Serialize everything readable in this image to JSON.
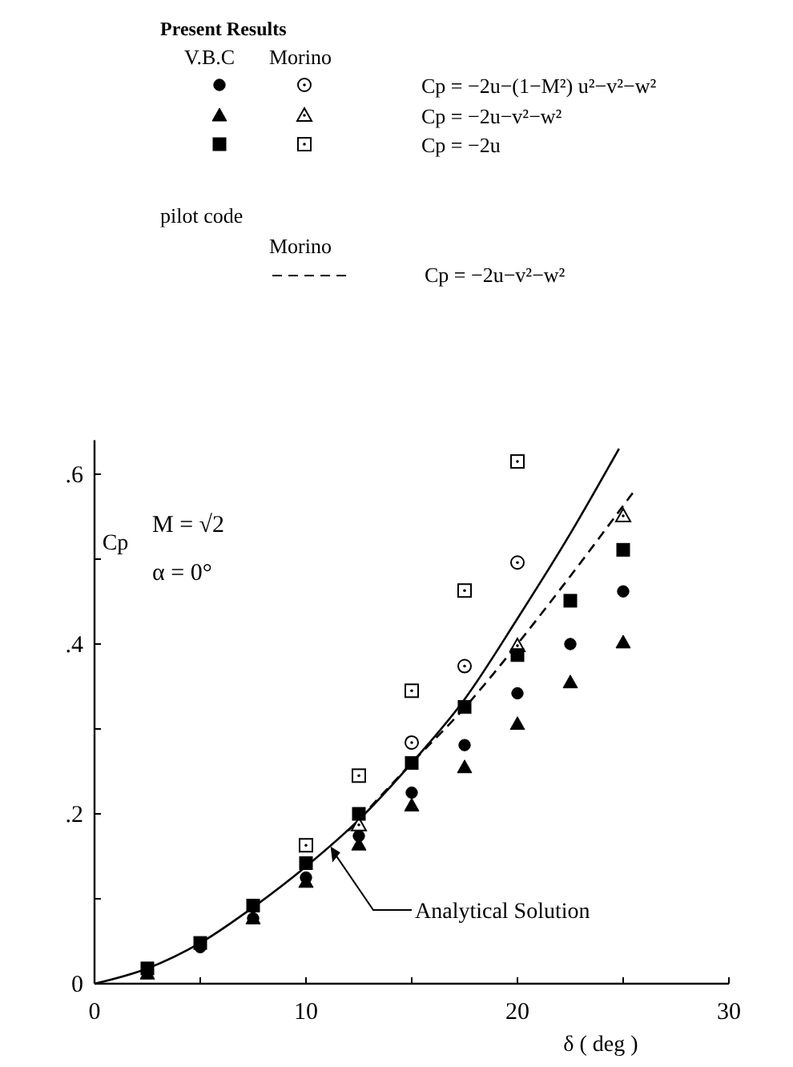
{
  "chart_data": {
    "type": "scatter",
    "xlabel": "δ ( deg )",
    "ylabel": "Cp",
    "xlim": [
      0,
      30
    ],
    "ylim": [
      0,
      0.64
    ],
    "xticks": [
      0,
      {
        "value": 5,
        "label": null
      },
      10,
      {
        "value": 15,
        "label": null
      },
      20,
      {
        "value": 25,
        "label": null
      },
      30
    ],
    "yticks": [
      0,
      {
        "value": 0.1,
        "label": null
      },
      {
        "value": 0.2,
        "label": ".2"
      },
      {
        "value": 0.3,
        "label": null
      },
      {
        "value": 0.4,
        "label": ".4"
      },
      {
        "value": 0.5,
        "label": null
      },
      {
        "value": 0.6,
        "label": ".6"
      }
    ],
    "grid": false,
    "series": [
      {
        "marker": "circle",
        "color": "#000000",
        "x": [
          5,
          7.5,
          10,
          12.5,
          15,
          17.5,
          20,
          22.5,
          25
        ],
        "values": [
          0.043,
          0.077,
          0.125,
          0.174,
          0.225,
          0.281,
          0.342,
          0.4,
          0.462
        ]
      },
      {
        "marker": "triangle",
        "color": "#000000",
        "x": [
          2.5,
          7.5,
          10,
          12.5,
          15,
          17.5,
          20,
          22.5,
          25
        ],
        "values": [
          0.012,
          0.077,
          0.12,
          0.164,
          0.21,
          0.255,
          0.306,
          0.355,
          0.402
        ]
      },
      {
        "marker": "square",
        "color": "#000000",
        "x": [
          2.5,
          5,
          7.5,
          10,
          12.5,
          15,
          17.5,
          20,
          22.5,
          25
        ],
        "values": [
          0.018,
          0.048,
          0.092,
          0.142,
          0.2,
          0.26,
          0.326,
          0.387,
          0.451,
          0.511
        ]
      },
      {
        "marker": "circle",
        "color": "#ffffff",
        "x": [
          15,
          17.5,
          20
        ],
        "values": [
          0.284,
          0.374,
          0.496
        ]
      },
      {
        "marker": "triangle",
        "color": "#ffffff",
        "x": [
          12.5,
          20,
          25
        ],
        "values": [
          0.187,
          0.398,
          0.551
        ]
      },
      {
        "marker": "square",
        "color": "#ffffff",
        "x": [
          10,
          12.5,
          15,
          17.5,
          20
        ],
        "values": [
          0.163,
          0.245,
          0.345,
          0.463,
          0.615
        ]
      },
      {
        "type": "line",
        "marker": "none",
        "line_style": "solid",
        "color": "#000000",
        "x": [
          0,
          2.5,
          5,
          7.5,
          10,
          12.5,
          15,
          17.5,
          20,
          22.5,
          24.8
        ],
        "values": [
          0,
          0.018,
          0.048,
          0.09,
          0.138,
          0.193,
          0.26,
          0.335,
          0.43,
          0.53,
          0.63
        ]
      },
      {
        "type": "line",
        "marker": "none",
        "line_style": "dashed",
        "color": "#000000",
        "x": [
          12,
          15,
          17.5,
          20,
          22.5,
          25.6
        ],
        "values": [
          0.18,
          0.26,
          0.325,
          0.4,
          0.48,
          0.583
        ]
      }
    ],
    "annotations": [
      "Present Results",
      "V.B.C",
      "Morino",
      "Cp = −2u−(1−M²) u²−v²−w²",
      "Cp = −2u−v²−w²",
      "Cp = −2u",
      "pilot code",
      "Morino",
      "Cp = −2u−v²−w²",
      "M = √2",
      "α =  0°",
      {
        "text": "Analytical Solution",
        "x": 11.2,
        "y": 0.16
      }
    ]
  }
}
